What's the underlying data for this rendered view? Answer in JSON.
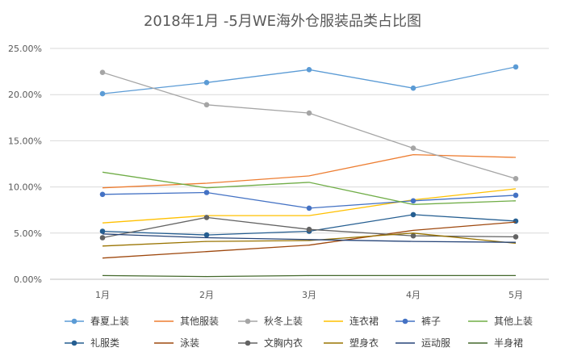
{
  "chart_data": {
    "type": "line",
    "title": "2018年1月 -5月WE海外仓服装品类占比图",
    "xlabel": "",
    "ylabel": "",
    "categories": [
      "1月",
      "2月",
      "3月",
      "4月",
      "5月"
    ],
    "ylim": [
      0,
      25
    ],
    "yticks": [
      0,
      5,
      10,
      15,
      20,
      25
    ],
    "ytick_labels": [
      "0.00%",
      "5.00%",
      "10.00%",
      "15.00%",
      "20.00%",
      "25.00%"
    ],
    "grid": true,
    "legend_position": "bottom",
    "series": [
      {
        "name": "春夏上装",
        "color": "#5b9bd5",
        "marker": true,
        "values": [
          20.1,
          21.3,
          22.7,
          20.7,
          23.0
        ]
      },
      {
        "name": "其他服装",
        "color": "#ed7d31",
        "marker": false,
        "values": [
          9.9,
          10.4,
          11.2,
          13.5,
          13.2
        ]
      },
      {
        "name": "秋冬上装",
        "color": "#a5a5a5",
        "marker": true,
        "values": [
          22.4,
          18.9,
          18.0,
          14.2,
          10.9
        ]
      },
      {
        "name": "连衣裙",
        "color": "#ffc000",
        "marker": false,
        "values": [
          6.1,
          6.9,
          6.9,
          8.6,
          9.8
        ]
      },
      {
        "name": "裤子",
        "color": "#4472c4",
        "marker": true,
        "values": [
          9.2,
          9.4,
          7.7,
          8.5,
          9.1
        ]
      },
      {
        "name": "其他上装",
        "color": "#70ad47",
        "marker": false,
        "values": [
          11.6,
          9.9,
          10.5,
          8.1,
          8.5
        ]
      },
      {
        "name": "礼服类",
        "color": "#255e91",
        "marker": true,
        "values": [
          5.2,
          4.8,
          5.2,
          7.0,
          6.3
        ]
      },
      {
        "name": "泳装",
        "color": "#9e480e",
        "marker": false,
        "values": [
          2.3,
          3.0,
          3.7,
          5.3,
          6.2
        ]
      },
      {
        "name": "文胸内衣",
        "color": "#636363",
        "marker": true,
        "values": [
          4.5,
          6.7,
          5.4,
          4.7,
          4.6
        ]
      },
      {
        "name": "塑身衣",
        "color": "#997300",
        "marker": false,
        "values": [
          3.6,
          4.1,
          4.2,
          5.0,
          3.9
        ]
      },
      {
        "name": "运动服",
        "color": "#264478",
        "marker": false,
        "values": [
          4.9,
          4.5,
          4.3,
          4.1,
          4.0
        ]
      },
      {
        "name": "半身裙",
        "color": "#43682b",
        "marker": false,
        "values": [
          0.4,
          0.3,
          0.4,
          0.4,
          0.4
        ]
      }
    ]
  }
}
